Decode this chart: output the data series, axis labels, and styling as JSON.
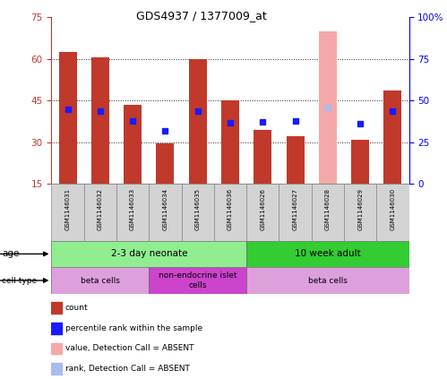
{
  "title": "GDS4937 / 1377009_at",
  "samples": [
    "GSM1146031",
    "GSM1146032",
    "GSM1146033",
    "GSM1146034",
    "GSM1146035",
    "GSM1146036",
    "GSM1146026",
    "GSM1146027",
    "GSM1146028",
    "GSM1146029",
    "GSM1146030"
  ],
  "count_values": [
    62.5,
    60.5,
    43.5,
    29.5,
    60.0,
    45.0,
    34.5,
    32.0,
    null,
    31.0,
    48.5
  ],
  "rank_values": [
    44.5,
    43.5,
    37.5,
    32.0,
    43.5,
    36.5,
    37.0,
    37.5,
    45.5,
    36.0,
    43.5
  ],
  "absent_bar_idx": 8,
  "absent_count_value": 70.0,
  "absent_rank_value": 45.5,
  "ylim_left": [
    15,
    75
  ],
  "ylim_right": [
    0,
    100
  ],
  "yticks_left": [
    15,
    30,
    45,
    60,
    75
  ],
  "yticks_right": [
    0,
    25,
    50,
    75,
    100
  ],
  "ytick_labels_right": [
    "0",
    "25",
    "50",
    "75",
    "100%"
  ],
  "bar_color": "#c0392b",
  "absent_bar_color": "#f4a9a8",
  "rank_color": "#1a1aff",
  "absent_rank_color": "#aabbee",
  "plot_bg": "#ffffff",
  "grid_color": "#222222",
  "age_groups": [
    {
      "label": "2-3 day neonate",
      "start": 0,
      "end": 6,
      "color": "#90ee90"
    },
    {
      "label": "10 week adult",
      "start": 6,
      "end": 11,
      "color": "#33cc33"
    }
  ],
  "cell_type_groups": [
    {
      "label": "beta cells",
      "start": 0,
      "end": 3,
      "color": "#dda0dd"
    },
    {
      "label": "non-endocrine islet\ncells",
      "start": 3,
      "end": 6,
      "color": "#cc44cc"
    },
    {
      "label": "beta cells",
      "start": 6,
      "end": 11,
      "color": "#dda0dd"
    }
  ],
  "legend_items": [
    {
      "label": "count",
      "color": "#c0392b"
    },
    {
      "label": "percentile rank within the sample",
      "color": "#1a1aff"
    },
    {
      "label": "value, Detection Call = ABSENT",
      "color": "#f4a9a8"
    },
    {
      "label": "rank, Detection Call = ABSENT",
      "color": "#aabbee"
    }
  ]
}
